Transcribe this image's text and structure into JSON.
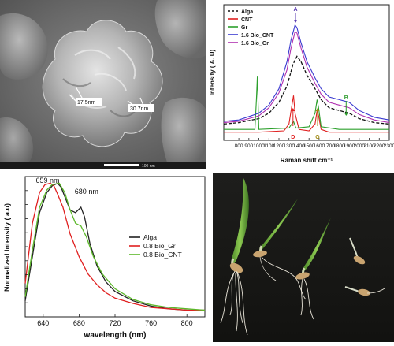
{
  "sem": {
    "measurements": [
      "17.5nm",
      "30.7nm"
    ],
    "scale_label": "100 nm"
  },
  "raman": {
    "chart_data": {
      "type": "line",
      "xlabel": "Raman shift cm⁻¹",
      "ylabel": "Intensity ( A. U)",
      "xlim": [
        650,
        2300
      ],
      "ylim": [
        0,
        1
      ],
      "xticks": [
        800,
        900,
        1000,
        1100,
        1200,
        1300,
        1400,
        1500,
        1600,
        1700,
        1800,
        1900,
        2000,
        2100,
        2200,
        2300
      ],
      "legend_position": "top-left",
      "series": [
        {
          "name": "Alga",
          "color": "#111111",
          "dash": true,
          "x": [
            650,
            800,
            1000,
            1100,
            1200,
            1280,
            1340,
            1380,
            1420,
            1480,
            1560,
            1620,
            1700,
            1800,
            1900,
            2000,
            2150,
            2300
          ],
          "y": [
            0.12,
            0.13,
            0.16,
            0.2,
            0.28,
            0.4,
            0.56,
            0.62,
            0.58,
            0.48,
            0.38,
            0.3,
            0.24,
            0.22,
            0.2,
            0.16,
            0.13,
            0.12
          ]
        },
        {
          "name": "CNT",
          "color": "#e02020",
          "dash": false,
          "x": [
            650,
            1000,
            1250,
            1300,
            1330,
            1345,
            1360,
            1400,
            1500,
            1560,
            1580,
            1595,
            1620,
            1700,
            2300
          ],
          "y": [
            0.06,
            0.06,
            0.07,
            0.12,
            0.26,
            0.33,
            0.2,
            0.08,
            0.07,
            0.12,
            0.22,
            0.18,
            0.08,
            0.06,
            0.06
          ]
        },
        {
          "name": "Gr",
          "color": "#2ca02c",
          "dash": false,
          "x": [
            650,
            960,
            975,
            985,
            1000,
            1300,
            1345,
            1370,
            1500,
            1560,
            1580,
            1595,
            1620,
            1800,
            2300
          ],
          "y": [
            0.08,
            0.08,
            0.3,
            0.47,
            0.08,
            0.09,
            0.14,
            0.09,
            0.1,
            0.2,
            0.3,
            0.24,
            0.1,
            0.08,
            0.08
          ]
        },
        {
          "name": "1.6 Bio_CNT",
          "color": "#3a3ad0",
          "dash": false,
          "x": [
            650,
            800,
            1000,
            1100,
            1200,
            1280,
            1320,
            1360,
            1380,
            1420,
            1480,
            1560,
            1620,
            1700,
            1800,
            1900,
            2000,
            2150,
            2300
          ],
          "y": [
            0.14,
            0.15,
            0.2,
            0.26,
            0.38,
            0.58,
            0.74,
            0.85,
            0.83,
            0.72,
            0.58,
            0.46,
            0.38,
            0.32,
            0.3,
            0.28,
            0.22,
            0.17,
            0.15
          ]
        },
        {
          "name": "1.6 Bio_Gr",
          "color": "#b030b0",
          "dash": false,
          "x": [
            650,
            800,
            1000,
            1100,
            1200,
            1280,
            1320,
            1360,
            1380,
            1420,
            1480,
            1560,
            1620,
            1700,
            1800,
            1900,
            2000,
            2150,
            2300
          ],
          "y": [
            0.13,
            0.14,
            0.18,
            0.24,
            0.35,
            0.52,
            0.68,
            0.8,
            0.79,
            0.68,
            0.54,
            0.42,
            0.34,
            0.28,
            0.26,
            0.24,
            0.19,
            0.15,
            0.13
          ]
        }
      ],
      "annotations": [
        {
          "text": "A",
          "x": 1365,
          "color": "#5a3ab0",
          "arrow": "down"
        },
        {
          "text": "B",
          "x": 1870,
          "color": "#2a9a2a",
          "arrow": "down"
        },
        {
          "text": "D",
          "x": 1340,
          "color": "#e02020",
          "arrow": "up"
        },
        {
          "text": "G",
          "x": 1585,
          "color": "#a08a10",
          "arrow": "up"
        }
      ]
    }
  },
  "pl": {
    "chart_data": {
      "type": "line",
      "xlabel": "wavelength (nm)",
      "ylabel": "Normalized Intensity ( a.u)",
      "xlim": [
        620,
        820
      ],
      "ylim": [
        0,
        1.05
      ],
      "xticks": [
        640,
        680,
        720,
        760,
        800
      ],
      "legend_position": "center-right",
      "peak_labels": [
        {
          "text": "659 nm",
          "x": 652
        },
        {
          "text": "680 nm",
          "x": 683
        }
      ],
      "series": [
        {
          "name": "Alga",
          "color": "#222222",
          "x": [
            620,
            628,
            636,
            644,
            650,
            656,
            660,
            664,
            670,
            676,
            682,
            686,
            692,
            700,
            710,
            720,
            740,
            760,
            780,
            800,
            820
          ],
          "y": [
            0.12,
            0.45,
            0.78,
            0.93,
            0.98,
            1.0,
            0.97,
            0.9,
            0.8,
            0.78,
            0.82,
            0.75,
            0.55,
            0.38,
            0.26,
            0.19,
            0.12,
            0.08,
            0.06,
            0.05,
            0.05
          ]
        },
        {
          "name": "0.8 Bio_Gr",
          "color": "#e02020",
          "x": [
            620,
            628,
            636,
            642,
            648,
            652,
            656,
            662,
            670,
            680,
            690,
            700,
            710,
            720,
            740,
            760,
            780,
            800,
            820
          ],
          "y": [
            0.25,
            0.7,
            0.93,
            0.99,
            1.0,
            0.98,
            0.92,
            0.82,
            0.62,
            0.45,
            0.32,
            0.24,
            0.18,
            0.14,
            0.1,
            0.07,
            0.06,
            0.05,
            0.05
          ]
        },
        {
          "name": "0.8 Bio_CNT",
          "color": "#5cb82a",
          "x": [
            620,
            628,
            636,
            644,
            650,
            658,
            664,
            670,
            676,
            682,
            688,
            696,
            706,
            720,
            740,
            760,
            780,
            800,
            820
          ],
          "y": [
            0.15,
            0.5,
            0.82,
            0.95,
            0.99,
            1.0,
            0.93,
            0.8,
            0.7,
            0.68,
            0.6,
            0.45,
            0.32,
            0.21,
            0.13,
            0.09,
            0.07,
            0.06,
            0.05
          ]
        }
      ]
    }
  },
  "photo": {}
}
